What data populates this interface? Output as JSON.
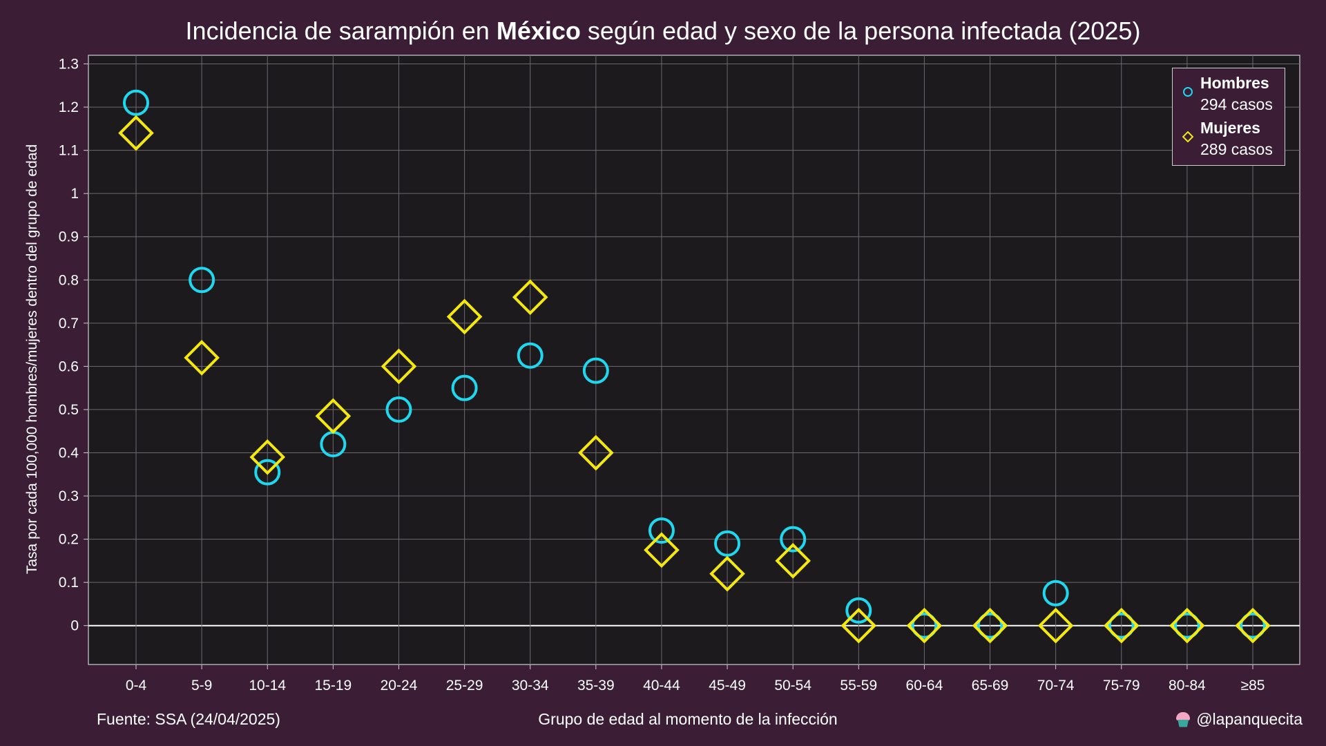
{
  "title": {
    "prefix": "Incidencia de sarampión en ",
    "bold": "México",
    "suffix": " según edad y sexo de la persona infectada (2025)"
  },
  "footer": {
    "source": "Fuente: SSA (24/04/2025)",
    "handle": "@lapanquecita"
  },
  "legend": {
    "hombres": {
      "name": "Hombres",
      "count": "294 casos"
    },
    "mujeres": {
      "name": "Mujeres",
      "count": "289 casos"
    }
  },
  "colors": {
    "background": "#3b1e36",
    "plot_background": "#1c1a1d",
    "grid": "#6c6a6e",
    "hombres": "#1fd8ef",
    "mujeres": "#f5e80f"
  },
  "chart_data": {
    "type": "scatter",
    "title": "Incidencia de sarampión en México según edad y sexo de la persona infectada (2025)",
    "xlabel": "Grupo de edad al momento de la infección",
    "ylabel": "Tasa por cada 100,000 hombres/mujeres dentro del grupo de edad",
    "categories": [
      "0-4",
      "5-9",
      "10-14",
      "15-19",
      "20-24",
      "25-29",
      "30-34",
      "35-39",
      "40-44",
      "45-49",
      "50-54",
      "55-59",
      "60-64",
      "65-69",
      "70-74",
      "75-79",
      "80-84",
      "≥85"
    ],
    "ylim": [
      -0.09,
      1.32
    ],
    "yticks": [
      0,
      0.1,
      0.2,
      0.3,
      0.4,
      0.5,
      0.6,
      0.7,
      0.8,
      0.9,
      1,
      1.1,
      1.2,
      1.3
    ],
    "ytick_labels": [
      "0",
      "0.1",
      "0.2",
      "0.3",
      "0.4",
      "0.5",
      "0.6",
      "0.7",
      "0.8",
      "0.9",
      "1",
      "1.1",
      "1.2",
      "1.3"
    ],
    "grid": true,
    "legend_position": "top-right",
    "series": [
      {
        "name": "Hombres",
        "marker": "circle",
        "values": [
          1.21,
          0.8,
          0.355,
          0.42,
          0.5,
          0.55,
          0.625,
          0.59,
          0.22,
          0.19,
          0.2,
          0.035,
          0,
          0,
          0.075,
          0,
          0,
          0
        ]
      },
      {
        "name": "Mujeres",
        "marker": "diamond",
        "values": [
          1.14,
          0.62,
          0.39,
          0.485,
          0.6,
          0.715,
          0.76,
          0.4,
          0.175,
          0.12,
          0.15,
          0,
          0,
          0,
          0,
          0,
          0,
          0
        ]
      }
    ]
  }
}
